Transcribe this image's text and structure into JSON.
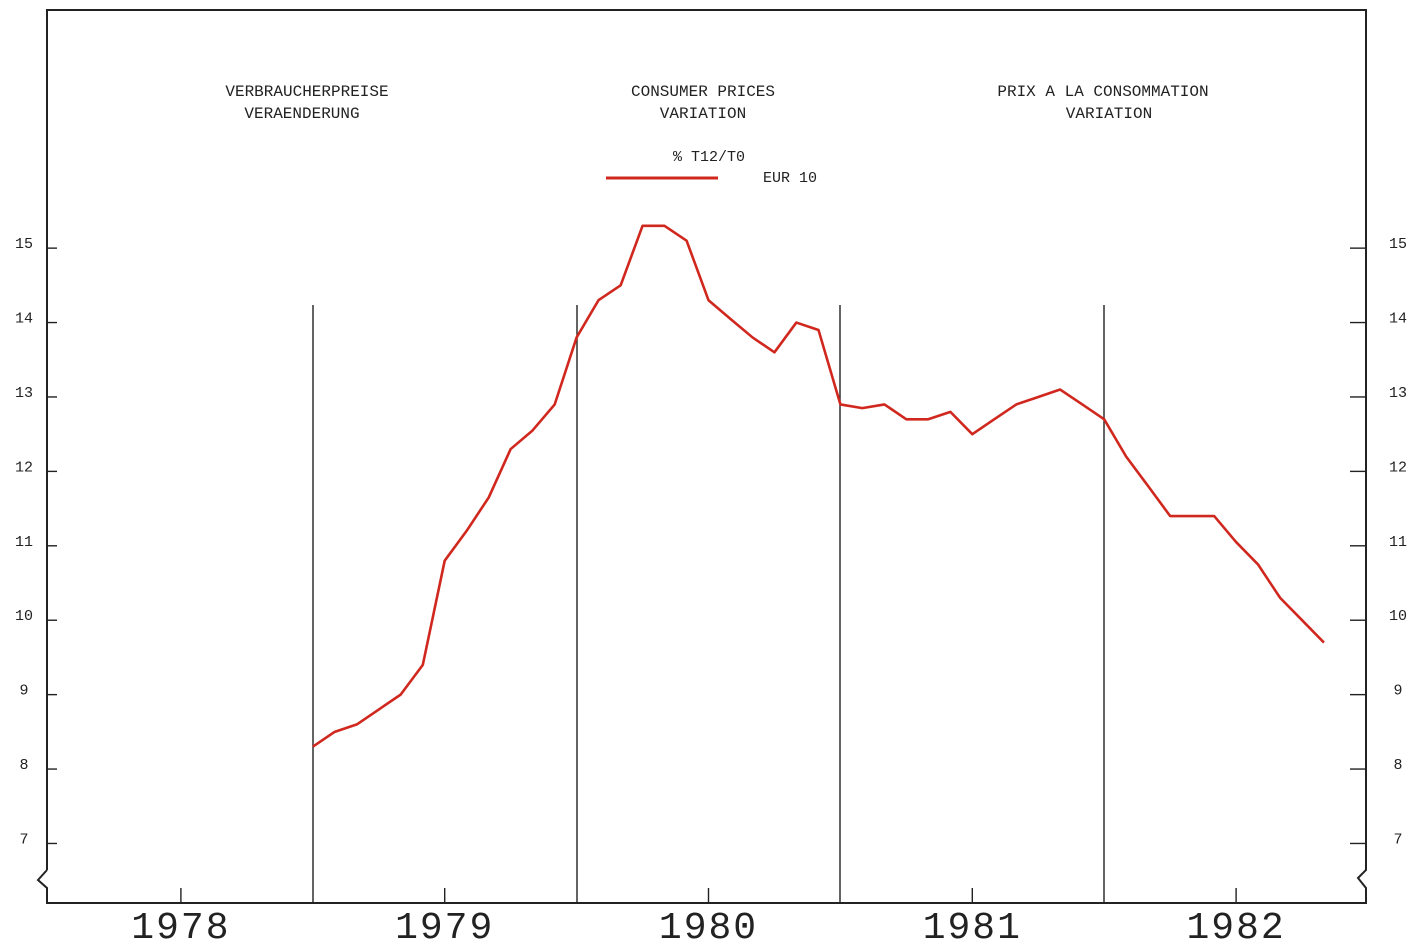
{
  "chart_data": {
    "type": "line",
    "titles": [
      [
        "VERBRAUCHERPREISE",
        "VERAENDERUNG"
      ],
      [
        "CONSUMER PRICES",
        "VARIATION"
      ],
      [
        "PRIX A LA CONSOMMATION",
        "VARIATION"
      ]
    ],
    "unit_label": "% T12/T0",
    "x": [
      1979,
      1979.083,
      1979.167,
      1979.25,
      1979.333,
      1979.417,
      1979.5,
      1979.583,
      1979.667,
      1979.75,
      1979.833,
      1979.917,
      1980,
      1980.083,
      1980.167,
      1980.25,
      1980.333,
      1980.417,
      1980.5,
      1980.583,
      1980.667,
      1980.75,
      1980.833,
      1980.917,
      1981,
      1981.083,
      1981.167,
      1981.25,
      1981.333,
      1981.417,
      1981.5,
      1981.583,
      1981.667,
      1981.75,
      1981.833,
      1981.917,
      1982,
      1982.083,
      1982.167,
      1982.25,
      1982.333,
      1982.417,
      1982.5,
      1982.583,
      1982.667,
      1982.75,
      1982.833
    ],
    "series": [
      {
        "name": "EUR 10",
        "color": "#d0281e",
        "values": [
          8.3,
          8.5,
          8.6,
          8.8,
          9.0,
          9.4,
          10.8,
          11.2,
          11.65,
          12.3,
          12.55,
          12.9,
          13.8,
          14.3,
          14.5,
          15.3,
          15.3,
          15.1,
          14.3,
          14.05,
          13.8,
          13.6,
          14.0,
          13.9,
          12.9,
          12.85,
          12.9,
          12.7,
          12.7,
          12.8,
          12.5,
          12.7,
          12.9,
          13.0,
          13.1,
          12.9,
          12.7,
          12.2,
          11.8,
          11.4,
          11.4,
          11.4,
          11.05,
          10.75,
          10.3,
          10.0,
          9.7
        ]
      }
    ],
    "xlim": [
      1978,
      1983
    ],
    "xticks": [
      {
        "value": 1978.5,
        "label": "1978"
      },
      {
        "value": 1979.5,
        "label": "1979"
      },
      {
        "value": 1980.5,
        "label": "1980"
      },
      {
        "value": 1981.5,
        "label": "1981"
      },
      {
        "value": 1982.5,
        "label": "1982"
      }
    ],
    "ylim": [
      6.2,
      18.2
    ],
    "yticks": [
      7,
      8,
      9,
      10,
      11,
      12,
      13,
      14,
      15
    ]
  }
}
